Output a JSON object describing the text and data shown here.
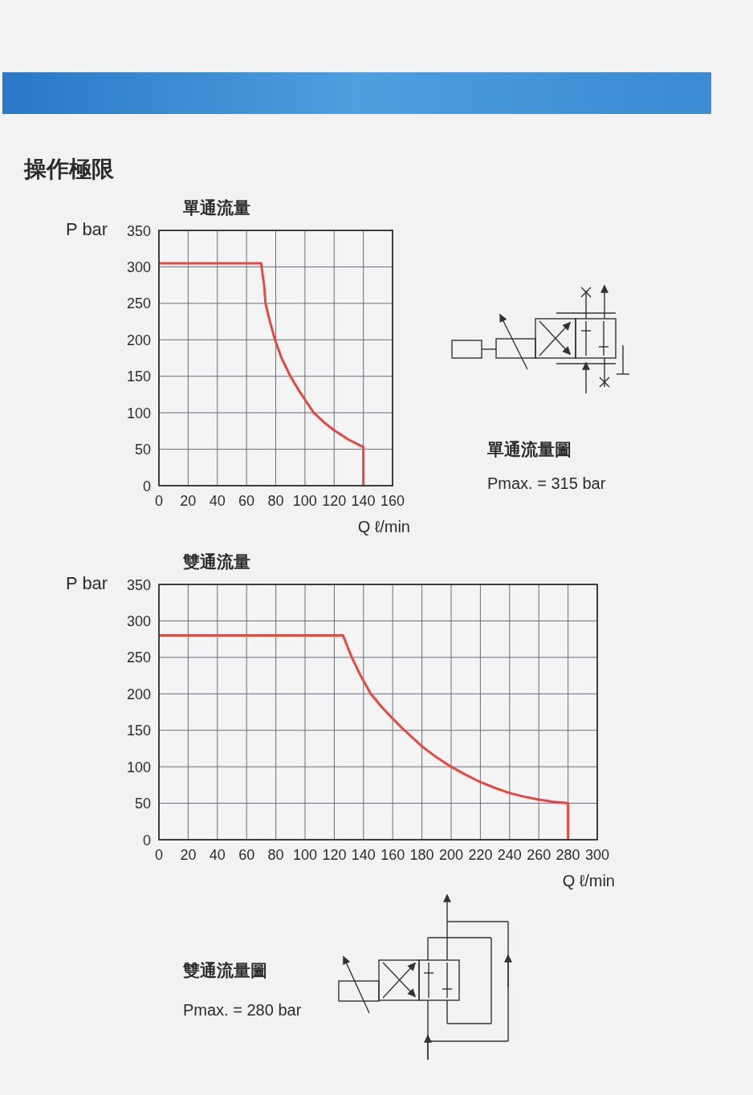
{
  "chart_data": [
    {
      "type": "line",
      "title": "單通流量",
      "xlabel": "Q ℓ/min",
      "ylabel": "P bar",
      "annotations": [
        "操作極限",
        "單通流量圖",
        "Pmax. = 315 bar"
      ],
      "xlim": [
        0,
        160
      ],
      "ylim": [
        0,
        350
      ],
      "xticks": [
        0,
        20,
        40,
        60,
        80,
        100,
        120,
        140,
        160
      ],
      "yticks": [
        0,
        50,
        100,
        150,
        200,
        250,
        300,
        350
      ],
      "grid": true,
      "series": [
        {
          "color": "#e5483f",
          "x": [
            0,
            70,
            72,
            73,
            76,
            79.5,
            84,
            90,
            96,
            100,
            106,
            113,
            120,
            130,
            140,
            140
          ],
          "values": [
            305,
            305,
            275,
            250,
            225,
            200,
            175,
            150,
            130,
            118,
            100,
            87,
            76,
            63,
            53,
            0
          ]
        }
      ]
    },
    {
      "type": "line",
      "title": "雙通流量",
      "xlabel": "Q ℓ/min",
      "ylabel": "P bar",
      "annotations": [
        "雙通流量圖",
        "Pmax. = 280 bar"
      ],
      "xlim": [
        0,
        300
      ],
      "ylim": [
        0,
        350
      ],
      "xticks": [
        0,
        20,
        40,
        60,
        80,
        100,
        120,
        140,
        160,
        180,
        200,
        220,
        240,
        260,
        280,
        300
      ],
      "yticks": [
        0,
        50,
        100,
        150,
        200,
        250,
        300,
        350
      ],
      "grid": true,
      "series": [
        {
          "color": "#e5483f",
          "x": [
            0,
            126,
            129,
            132,
            138,
            145,
            152,
            160,
            168,
            180,
            190,
            200,
            210,
            220,
            230,
            240,
            250,
            260,
            270,
            280,
            280
          ],
          "values": [
            280,
            280,
            265,
            250,
            225,
            200,
            183,
            166,
            150,
            128,
            113,
            100,
            89,
            79,
            71,
            64,
            59,
            55,
            52,
            50,
            0
          ]
        }
      ]
    }
  ]
}
